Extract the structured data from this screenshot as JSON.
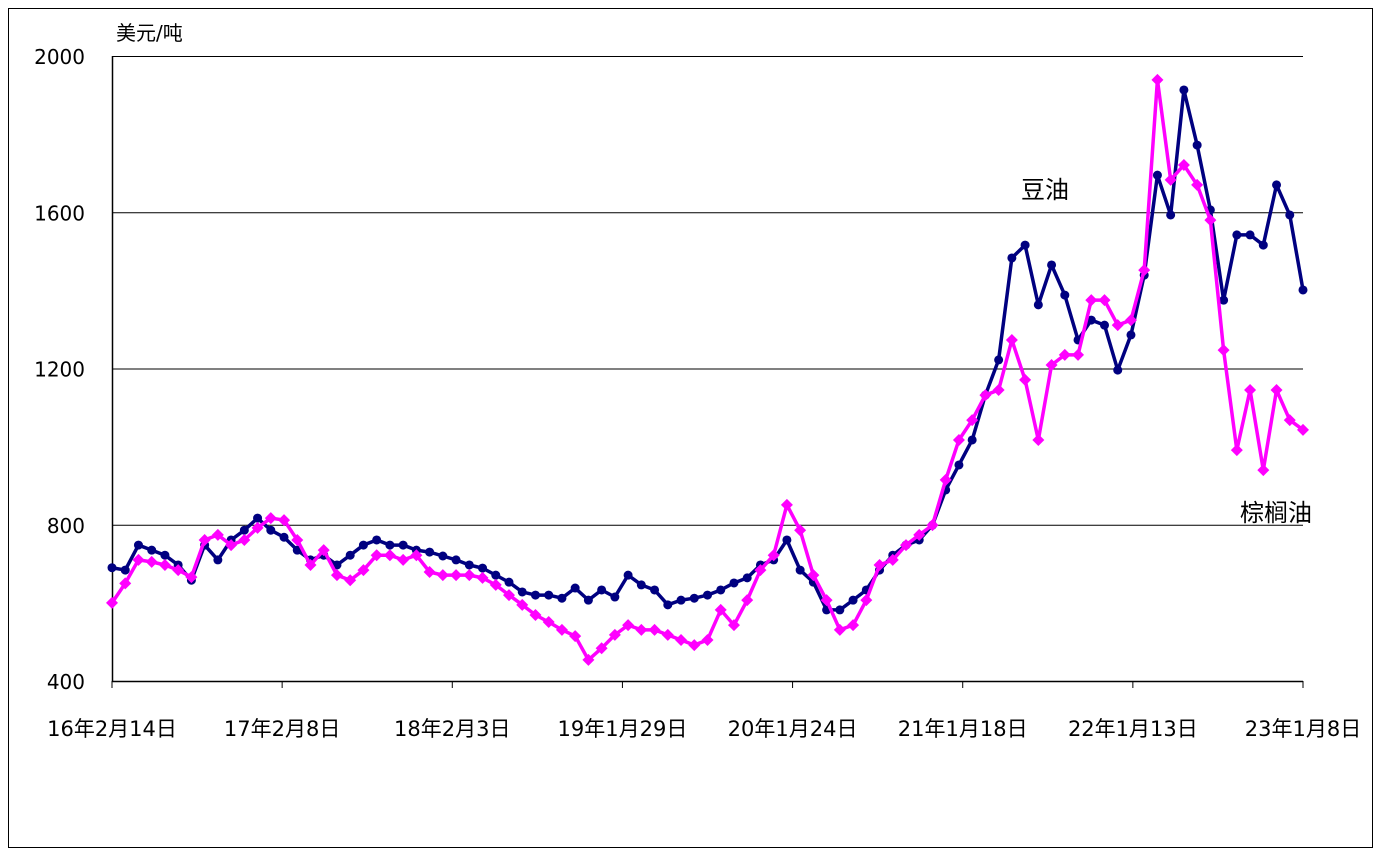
{
  "chart_data": {
    "type": "line",
    "title": "",
    "unit_label": "美元/吨",
    "ylim": [
      400,
      2000
    ],
    "yticks": [
      400,
      800,
      1200,
      1600,
      2000
    ],
    "xlim": [
      "2016-02-14",
      "2023-01-08"
    ],
    "xtick_labels": [
      "16年2月14日",
      "17年2月8日",
      "18年2月3日",
      "19年1月29日",
      "20年1月24日",
      "21年1月18日",
      "22年1月13日",
      "23年1月8日"
    ],
    "grid": "horizontal",
    "x": [
      "2016-02-14",
      "2016-03-13",
      "2016-04-10",
      "2016-05-08",
      "2016-06-05",
      "2016-07-03",
      "2016-07-31",
      "2016-08-28",
      "2016-09-25",
      "2016-10-23",
      "2016-11-20",
      "2016-12-18",
      "2017-01-15",
      "2017-02-12",
      "2017-03-12",
      "2017-04-09",
      "2017-05-07",
      "2017-06-04",
      "2017-07-02",
      "2017-07-30",
      "2017-08-27",
      "2017-09-24",
      "2017-10-22",
      "2017-11-19",
      "2017-12-17",
      "2018-01-14",
      "2018-02-11",
      "2018-03-11",
      "2018-04-08",
      "2018-05-06",
      "2018-06-03",
      "2018-07-01",
      "2018-07-29",
      "2018-08-26",
      "2018-09-23",
      "2018-10-21",
      "2018-11-18",
      "2018-12-16",
      "2019-01-13",
      "2019-02-10",
      "2019-03-10",
      "2019-04-07",
      "2019-05-05",
      "2019-06-02",
      "2019-06-30",
      "2019-07-28",
      "2019-08-25",
      "2019-09-22",
      "2019-10-20",
      "2019-11-17",
      "2019-12-15",
      "2020-01-12",
      "2020-02-09",
      "2020-03-08",
      "2020-04-05",
      "2020-05-03",
      "2020-05-31",
      "2020-06-28",
      "2020-07-26",
      "2020-08-23",
      "2020-09-20",
      "2020-10-18",
      "2020-11-15",
      "2020-12-13",
      "2021-01-10",
      "2021-02-07",
      "2021-03-07",
      "2021-04-04",
      "2021-05-02",
      "2021-05-30",
      "2021-06-27",
      "2021-07-25",
      "2021-08-22",
      "2021-09-19",
      "2021-10-17",
      "2021-11-14",
      "2021-12-12",
      "2022-01-09",
      "2022-02-06",
      "2022-03-06",
      "2022-04-03",
      "2022-05-01",
      "2022-05-29",
      "2022-06-26",
      "2022-07-24",
      "2022-08-21",
      "2022-09-18",
      "2022-10-16",
      "2022-11-13",
      "2022-12-11",
      "2023-01-08"
    ],
    "series": [
      {
        "name": "豆油",
        "color": "#000080",
        "marker": "circle",
        "values": [
          690,
          684,
          748,
          735,
          722,
          697,
          658,
          748,
          710,
          761,
          786,
          817,
          786,
          768,
          735,
          710,
          722,
          697,
          722,
          748,
          761,
          748,
          748,
          735,
          730,
          720,
          710,
          697,
          689,
          671,
          653,
          628,
          620,
          620,
          612,
          638,
          607,
          633,
          615,
          671,
          646,
          633,
          595,
          607,
          612,
          620,
          633,
          651,
          664,
          697,
          710,
          761,
          684,
          653,
          582,
          582,
          607,
          633,
          684,
          722,
          748,
          761,
          799,
          889,
          953,
          1017,
          1132,
          1222,
          1483,
          1516,
          1363,
          1465,
          1388,
          1273,
          1324,
          1311,
          1196,
          1286,
          1439,
          1695,
          1593,
          1913,
          1772,
          1606,
          1375,
          1542,
          1542,
          1516,
          1670,
          1593,
          1401
        ]
      },
      {
        "name": "棕榈油",
        "color": "#FF00FF",
        "marker": "diamond",
        "values": [
          600,
          650,
          710,
          705,
          697,
          684,
          666,
          761,
          774,
          748,
          761,
          792,
          817,
          812,
          761,
          697,
          735,
          671,
          658,
          684,
          722,
          722,
          710,
          722,
          679,
          671,
          671,
          671,
          664,
          646,
          620,
          595,
          569,
          551,
          531,
          515,
          454,
          484,
          518,
          543,
          531,
          531,
          518,
          505,
          492,
          505,
          582,
          543,
          607,
          684,
          722,
          851,
          786,
          671,
          607,
          531,
          543,
          607,
          697,
          710,
          748,
          774,
          799,
          915,
          1017,
          1068,
          1132,
          1145,
          1273,
          1171,
          1017,
          1209,
          1235,
          1235,
          1375,
          1375,
          1311,
          1324,
          1452,
          1939,
          1683,
          1721,
          1670,
          1580,
          1247,
          991,
          1145,
          940,
          1145,
          1068,
          1043
        ]
      }
    ]
  }
}
